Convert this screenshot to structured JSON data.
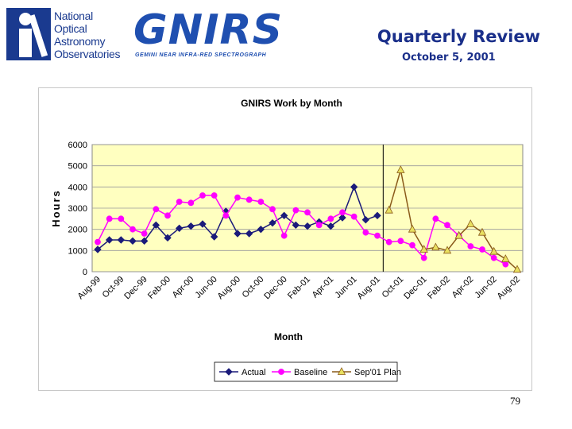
{
  "header": {
    "org_lines": [
      "National",
      "Optical",
      "Astronomy",
      "Observatories"
    ],
    "logo_text": "GNIRS",
    "logo_subtitle": "GEMINI NEAR INFRA-RED SPECTROGRAPH",
    "title": "Quarterly Review",
    "date": "October 5, 2001"
  },
  "page_number": "79",
  "colors": {
    "plot_background": "#ffffc0",
    "actual": "#1a1a7a",
    "baseline": "#ff00ff",
    "plan": "#8a5a1a",
    "plan_marker_fill": "#e8e060"
  },
  "chart_data": {
    "type": "line",
    "title": "GNIRS Work by Month",
    "xlabel": "Month",
    "ylabel": "Hours",
    "ylim": [
      0,
      6000
    ],
    "yticks": [
      0,
      1000,
      2000,
      3000,
      4000,
      5000,
      6000
    ],
    "x": [
      "Aug-99",
      "Sep-99",
      "Oct-99",
      "Nov-99",
      "Dec-99",
      "Jan-00",
      "Feb-00",
      "Mar-00",
      "Apr-00",
      "May-00",
      "Jun-00",
      "Jul-00",
      "Aug-00",
      "Sep-00",
      "Oct-00",
      "Nov-00",
      "Dec-00",
      "Jan-01",
      "Feb-01",
      "Mar-01",
      "Apr-01",
      "May-01",
      "Jun-01",
      "Jul-01",
      "Aug-01",
      "Sep-01",
      "Oct-01",
      "Nov-01",
      "Dec-01",
      "Jan-02",
      "Feb-02",
      "Mar-02",
      "Apr-02",
      "May-02",
      "Jun-02",
      "Jul-02",
      "Aug-02"
    ],
    "xtick_labels": [
      "Aug-99",
      "Oct-99",
      "Dec-99",
      "Feb-00",
      "Apr-00",
      "Jun-00",
      "Aug-00",
      "Oct-00",
      "Dec-00",
      "Feb-01",
      "Apr-01",
      "Jun-01",
      "Aug-01",
      "Oct-01",
      "Dec-01",
      "Feb-02",
      "Apr-02",
      "Jun-02",
      "Aug-02"
    ],
    "vline_after": "Aug-01",
    "grid": "horizontal",
    "legend_position": "bottom",
    "series": [
      {
        "name": "Actual",
        "marker": "diamond",
        "values": [
          1050,
          1500,
          1500,
          1450,
          1450,
          2200,
          1600,
          2050,
          2150,
          2250,
          1650,
          2850,
          1800,
          1800,
          2000,
          2300,
          2650,
          2200,
          2150,
          2350,
          2150,
          2550,
          4000,
          2450,
          2650,
          null,
          null,
          null,
          null,
          null,
          null,
          null,
          null,
          null,
          null,
          null,
          null
        ]
      },
      {
        "name": "Baseline",
        "marker": "circle",
        "values": [
          1400,
          2500,
          2500,
          2000,
          1800,
          2950,
          2650,
          3300,
          3250,
          3600,
          3600,
          2650,
          3500,
          3400,
          3300,
          2950,
          1700,
          2900,
          2800,
          2200,
          2500,
          2800,
          2600,
          1850,
          1700,
          1400,
          1450,
          1250,
          650,
          2500,
          2200,
          1700,
          1200,
          1050,
          650,
          350,
          null
        ]
      },
      {
        "name": "Sep'01 Plan",
        "marker": "triangle",
        "values": [
          null,
          null,
          null,
          null,
          null,
          null,
          null,
          null,
          null,
          null,
          null,
          null,
          null,
          null,
          null,
          null,
          null,
          null,
          null,
          null,
          null,
          null,
          null,
          null,
          null,
          2900,
          4800,
          2000,
          1050,
          1150,
          1000,
          1700,
          2250,
          1850,
          950,
          600,
          100
        ]
      }
    ]
  }
}
